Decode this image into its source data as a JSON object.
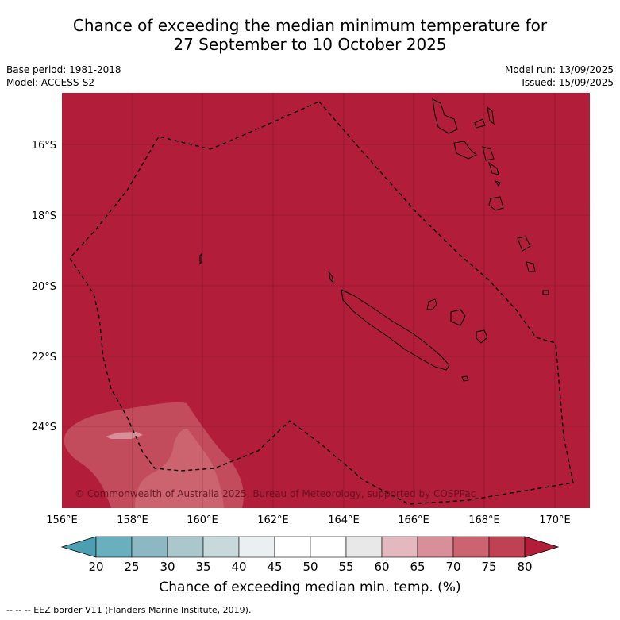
{
  "title": {
    "line1": "Chance of exceeding the median minimum temperature for",
    "line2": "27 September to 10 October 2025"
  },
  "meta": {
    "base_period": "Base period: 1981-2018",
    "model": "Model: ACCESS-S2",
    "model_run": "Model run: 13/09/2025",
    "issued": "Issued: 15/09/2025"
  },
  "map": {
    "lon_labels": [
      "156°E",
      "158°E",
      "160°E",
      "162°E",
      "164°E",
      "166°E",
      "168°E",
      "170°E"
    ],
    "lat_labels": [
      "16°S",
      "18°S",
      "20°S",
      "22°S",
      "24°S"
    ],
    "copyright": "© Commonwealth of Australia 2025, Bureau of Meteorology, supported by COSPPac",
    "background_color": "#b21d3a"
  },
  "colorbar": {
    "ticks": [
      "20",
      "25",
      "30",
      "35",
      "40",
      "45",
      "50",
      "55",
      "60",
      "65",
      "70",
      "75",
      "80"
    ],
    "colors": [
      "#6aafbd",
      "#8cb8c3",
      "#aac7cc",
      "#c8d9dc",
      "#eaf0f1",
      "#ffffff",
      "#ffffff",
      "#e8e8e8",
      "#e3b9bf",
      "#d88f99",
      "#cc6470",
      "#bf4253"
    ],
    "low_extend_color": "#4aa0b0",
    "high_extend_color": "#b21d3a",
    "label": "Chance of exceeding median min. temp. (%)"
  },
  "footer": {
    "eez_note": "--  --  -- EEZ border V11 (Flanders Marine Institute, 2019)."
  }
}
